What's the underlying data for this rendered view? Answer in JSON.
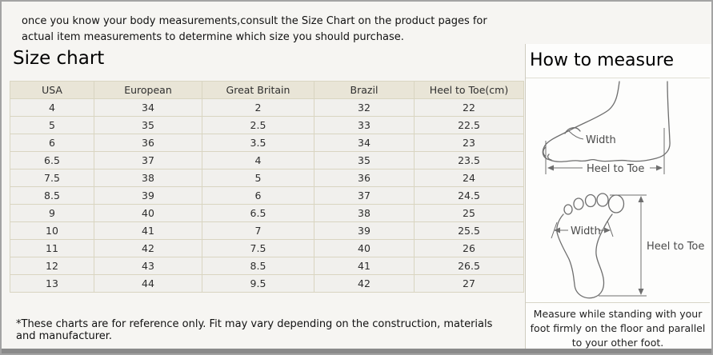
{
  "intro": "once you know your body measurements,consult the Size Chart on the product pages for actual item measurements to determine which size you should purchase.",
  "left": {
    "title": "Size chart",
    "footnote": "*These charts are for reference only. Fit may vary depending on the construction, materials and manufacturer."
  },
  "table": {
    "headers": [
      "USA",
      "European",
      "Great Britain",
      "Brazil",
      "Heel to Toe(cm)"
    ],
    "rows": [
      [
        "4",
        "34",
        "2",
        "32",
        "22"
      ],
      [
        "5",
        "35",
        "2.5",
        "33",
        "22.5"
      ],
      [
        "6",
        "36",
        "3.5",
        "34",
        "23"
      ],
      [
        "6.5",
        "37",
        "4",
        "35",
        "23.5"
      ],
      [
        "7.5",
        "38",
        "5",
        "36",
        "24"
      ],
      [
        "8.5",
        "39",
        "6",
        "37",
        "24.5"
      ],
      [
        "9",
        "40",
        "6.5",
        "38",
        "25"
      ],
      [
        "10",
        "41",
        "7",
        "39",
        "25.5"
      ],
      [
        "11",
        "42",
        "7.5",
        "40",
        "26"
      ],
      [
        "12",
        "43",
        "8.5",
        "41",
        "26.5"
      ],
      [
        "13",
        "44",
        "9.5",
        "42",
        "27"
      ]
    ]
  },
  "right": {
    "title": "How to measure",
    "note": "Measure while standing with your foot firmly on the floor and parallel to your other foot.",
    "diagram_labels": {
      "side_width": "Width",
      "side_heel_to_toe": "Heel to Toe",
      "sole_width": "Width",
      "sole_heel_to_toe": "Heel to Toe"
    }
  },
  "colors": {
    "table_header_bg": "#e9e5d7",
    "table_cell_bg": "#f1f0ed",
    "table_border": "#d9d5c1",
    "frame_border": "#a3a3a3",
    "bottom_bar": "#8a8a8a",
    "divider": "#cfccc0"
  }
}
